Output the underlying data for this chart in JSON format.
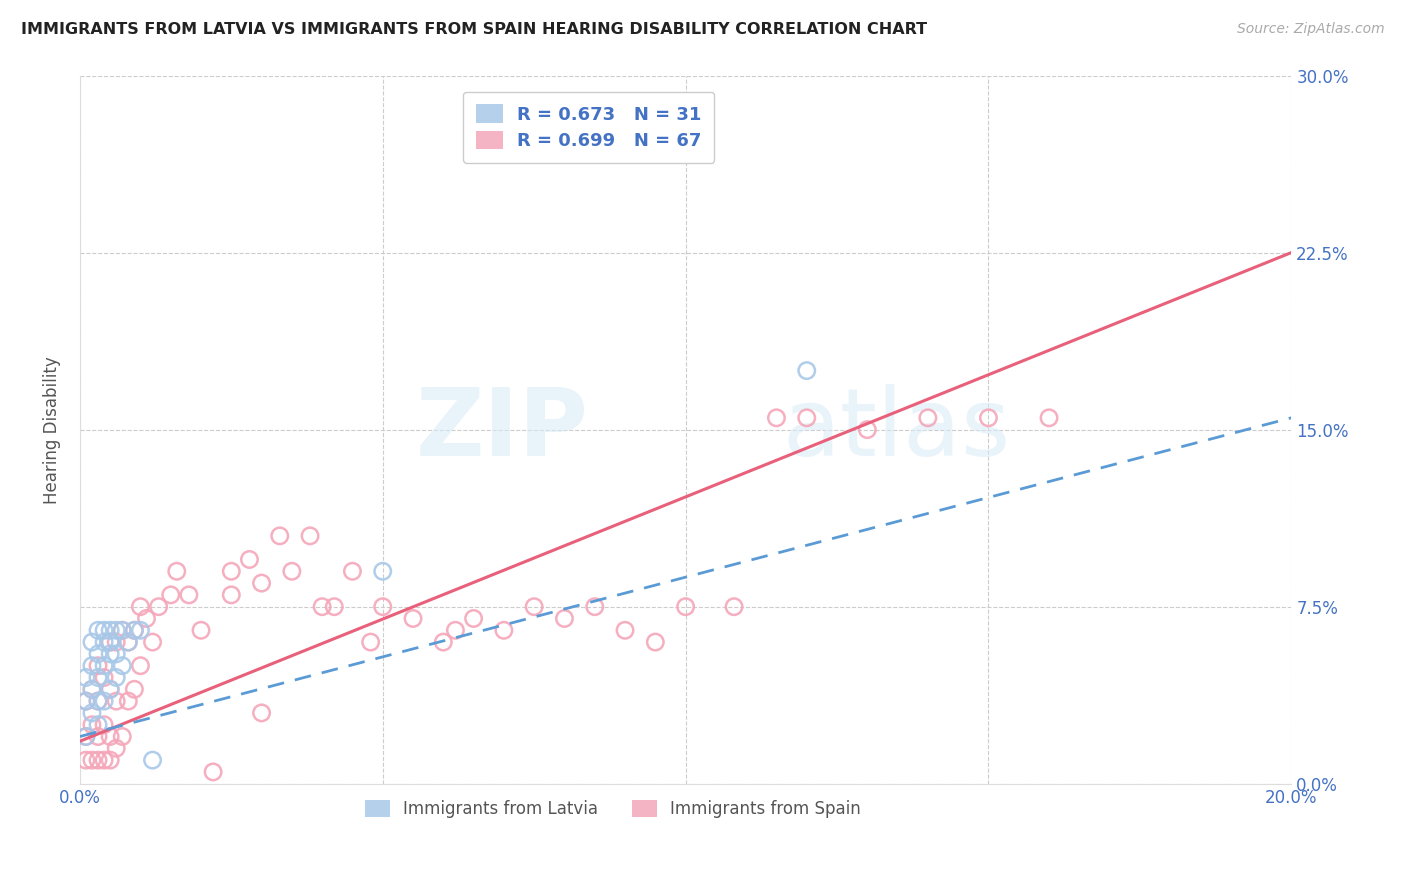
{
  "title": "IMMIGRANTS FROM LATVIA VS IMMIGRANTS FROM SPAIN HEARING DISABILITY CORRELATION CHART",
  "source": "Source: ZipAtlas.com",
  "ylabel": "Hearing Disability",
  "xlim": [
    0.0,
    0.2
  ],
  "ylim": [
    0.0,
    0.3
  ],
  "latvia_color": "#a8c8e8",
  "latvia_line_color": "#5b9bd5",
  "spain_color": "#f4a7b9",
  "spain_line_color": "#e8607a",
  "latvia_R": 0.673,
  "latvia_N": 31,
  "spain_R": 0.699,
  "spain_N": 67,
  "watermark": "ZIPatlas",
  "background_color": "#ffffff",
  "grid_color": "#cccccc",
  "axis_label_color": "#4472c4",
  "latvia_scatter_x": [
    0.001,
    0.001,
    0.001,
    0.002,
    0.002,
    0.002,
    0.002,
    0.003,
    0.003,
    0.003,
    0.003,
    0.003,
    0.004,
    0.004,
    0.004,
    0.004,
    0.005,
    0.005,
    0.005,
    0.005,
    0.006,
    0.006,
    0.006,
    0.007,
    0.007,
    0.008,
    0.009,
    0.01,
    0.012,
    0.05,
    0.12
  ],
  "latvia_scatter_y": [
    0.02,
    0.035,
    0.045,
    0.03,
    0.04,
    0.05,
    0.06,
    0.025,
    0.035,
    0.045,
    0.055,
    0.065,
    0.035,
    0.05,
    0.06,
    0.065,
    0.04,
    0.055,
    0.06,
    0.065,
    0.045,
    0.055,
    0.065,
    0.05,
    0.065,
    0.06,
    0.065,
    0.065,
    0.01,
    0.09,
    0.175
  ],
  "spain_scatter_x": [
    0.001,
    0.001,
    0.001,
    0.002,
    0.002,
    0.002,
    0.003,
    0.003,
    0.003,
    0.003,
    0.004,
    0.004,
    0.004,
    0.005,
    0.005,
    0.005,
    0.005,
    0.006,
    0.006,
    0.006,
    0.007,
    0.007,
    0.008,
    0.008,
    0.009,
    0.009,
    0.01,
    0.01,
    0.011,
    0.012,
    0.013,
    0.015,
    0.016,
    0.018,
    0.02,
    0.022,
    0.025,
    0.025,
    0.028,
    0.03,
    0.03,
    0.033,
    0.035,
    0.038,
    0.04,
    0.042,
    0.045,
    0.048,
    0.05,
    0.055,
    0.06,
    0.062,
    0.065,
    0.07,
    0.075,
    0.08,
    0.085,
    0.09,
    0.095,
    0.1,
    0.108,
    0.115,
    0.12,
    0.13,
    0.14,
    0.15,
    0.16
  ],
  "spain_scatter_y": [
    0.01,
    0.02,
    0.035,
    0.01,
    0.025,
    0.04,
    0.01,
    0.02,
    0.035,
    0.05,
    0.01,
    0.025,
    0.045,
    0.01,
    0.02,
    0.04,
    0.06,
    0.015,
    0.035,
    0.06,
    0.02,
    0.065,
    0.035,
    0.06,
    0.04,
    0.065,
    0.05,
    0.075,
    0.07,
    0.06,
    0.075,
    0.08,
    0.09,
    0.08,
    0.065,
    0.005,
    0.09,
    0.08,
    0.095,
    0.03,
    0.085,
    0.105,
    0.09,
    0.105,
    0.075,
    0.075,
    0.09,
    0.06,
    0.075,
    0.07,
    0.06,
    0.065,
    0.07,
    0.065,
    0.075,
    0.07,
    0.075,
    0.065,
    0.06,
    0.075,
    0.075,
    0.155,
    0.155,
    0.15,
    0.155,
    0.155,
    0.155
  ],
  "latvia_line_x": [
    0.0,
    0.2
  ],
  "latvia_line_y": [
    0.02,
    0.155
  ],
  "spain_line_x": [
    0.0,
    0.2
  ],
  "spain_line_y": [
    0.018,
    0.225
  ]
}
